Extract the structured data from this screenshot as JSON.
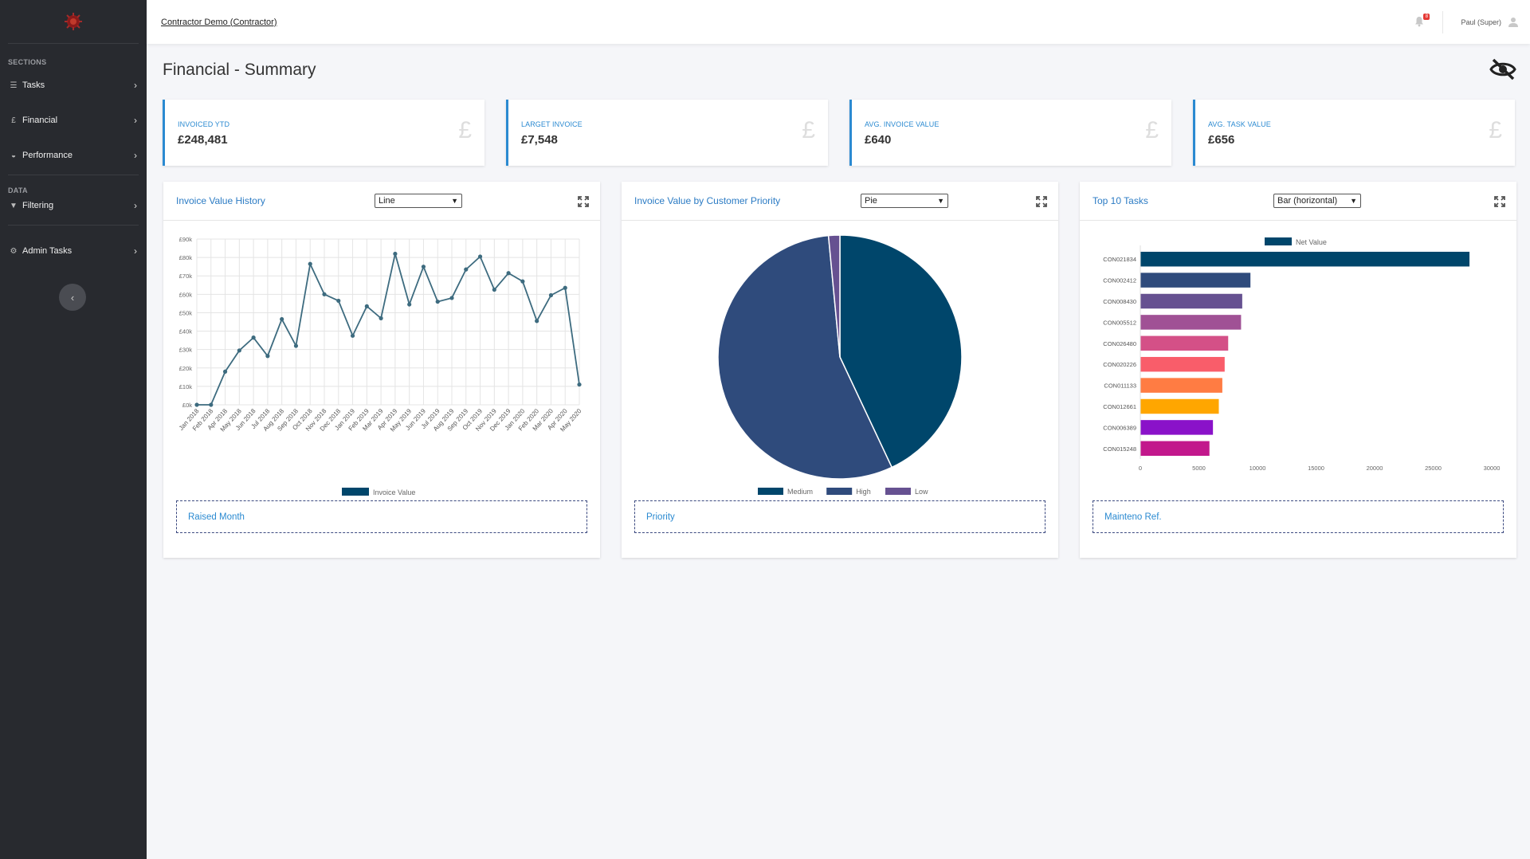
{
  "header": {
    "org_link": "Contractor Demo (Contractor)",
    "notification_count": "8",
    "user_name": "Paul (Super)"
  },
  "sidebar": {
    "sections_label": "SECTIONS",
    "data_label": "DATA",
    "items": [
      {
        "label": "Tasks",
        "icon": "list-icon"
      },
      {
        "label": "Financial",
        "icon": "pound-icon"
      },
      {
        "label": "Performance",
        "icon": "dashboard-icon"
      },
      {
        "label": "Filtering",
        "icon": "filter-icon"
      },
      {
        "label": "Admin Tasks",
        "icon": "gear-icon"
      }
    ]
  },
  "page": {
    "title": "Financial - Summary"
  },
  "kpis": [
    {
      "label": "INVOICED YTD",
      "value": "£248,481"
    },
    {
      "label": "LARGET INVOICE",
      "value": "£7,548"
    },
    {
      "label": "AVG. INVOICE VALUE",
      "value": "£640"
    },
    {
      "label": "AVG. TASK VALUE",
      "value": "£656"
    }
  ],
  "kpi_symbol": "£",
  "cards": [
    {
      "title": "Invoice Value History",
      "select": "Line",
      "group_by": "Raised Month"
    },
    {
      "title": "Invoice Value by Customer Priority",
      "select": "Pie",
      "group_by": "Priority"
    },
    {
      "title": "Top 10 Tasks",
      "select": "Bar (horizontal)",
      "group_by": "Mainteno Ref."
    }
  ],
  "colors": {
    "accent": "#2b8ad1",
    "sidebar": "#282a2f"
  },
  "chart_data": [
    {
      "type": "line",
      "x": [
        "Jan 2018",
        "Feb 2018",
        "Apr 2018",
        "May 2018",
        "Jun 2018",
        "Jul 2018",
        "Aug 2018",
        "Sep 2018",
        "Oct 2018",
        "Nov 2018",
        "Dec 2018",
        "Jan 2019",
        "Feb 2019",
        "Mar 2019",
        "Apr 2019",
        "May 2019",
        "Jun 2019",
        "Jul 2019",
        "Aug 2019",
        "Sep 2019",
        "Oct 2019",
        "Nov 2019",
        "Dec 2019",
        "Jan 2020",
        "Feb 2020",
        "Mar 2020",
        "Apr 2020",
        "May 2020"
      ],
      "series": [
        {
          "name": "Invoice Value",
          "values": [
            0,
            0,
            18000,
            29500,
            36500,
            26500,
            46500,
            32000,
            76500,
            60000,
            56500,
            37500,
            53500,
            47000,
            82000,
            54500,
            75000,
            56000,
            58000,
            73500,
            80500,
            62500,
            71500,
            67000,
            45500,
            59500,
            63500,
            11000
          ]
        }
      ],
      "yticks": [
        "£0k",
        "£10k",
        "£20k",
        "£30k",
        "£40k",
        "£50k",
        "£60k",
        "£70k",
        "£80k",
        "£90k"
      ],
      "ylim": [
        0,
        90000
      ],
      "color": "#3d6b7f",
      "grid": true,
      "legend": "bottom"
    },
    {
      "type": "pie",
      "slices": [
        {
          "label": "Medium",
          "value": 43,
          "color": "#00466b"
        },
        {
          "label": "High",
          "value": 55.5,
          "color": "#2f4b7c"
        },
        {
          "label": "Low",
          "value": 1.5,
          "color": "#665191"
        }
      ],
      "legend": "bottom"
    },
    {
      "type": "bar",
      "orientation": "horizontal",
      "categories": [
        "CON021834",
        "CON002412",
        "CON008430",
        "CON005512",
        "CON026480",
        "CON020226",
        "CON011133",
        "CON012661",
        "CON006389",
        "CON015248"
      ],
      "series": [
        {
          "name": "Net Value",
          "values": [
            28100,
            9400,
            8700,
            8600,
            7500,
            7200,
            7000,
            6700,
            6200,
            5900
          ]
        }
      ],
      "colors": [
        "#00466b",
        "#2f4b7c",
        "#665191",
        "#a05195",
        "#d45087",
        "#f95d6a",
        "#ff7c43",
        "#ffa600",
        "#8a12c9",
        "#c2188c"
      ],
      "xticks": [
        "0",
        "5000",
        "10000",
        "15000",
        "20000",
        "25000",
        "30000"
      ],
      "xlim": [
        0,
        30000
      ],
      "legend": "top"
    }
  ]
}
